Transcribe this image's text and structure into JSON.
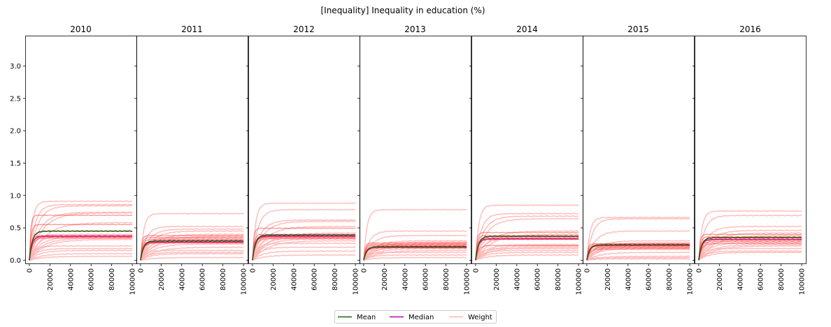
{
  "chart_data": {
    "type": "line",
    "title": "[Inequality] Inequality in education (%)",
    "x_ticks": [
      0,
      20000,
      40000,
      60000,
      80000,
      100000
    ],
    "x_range": [
      -4000,
      104000
    ],
    "ylim": [
      -0.05,
      3.47
    ],
    "y_ticks": [
      0.0,
      0.5,
      1.0,
      1.5,
      2.0,
      2.5,
      3.0
    ],
    "y_tick_labels": [
      "0.0",
      "0.5",
      "1.0",
      "1.5",
      "2.0",
      "2.5",
      "3.0"
    ],
    "legend": {
      "placement": "bottom-center",
      "entries": [
        {
          "label": "Mean",
          "color": "#2e7d1f"
        },
        {
          "label": "Median",
          "color": "#c020c0"
        },
        {
          "label": "Weight",
          "color": "#ffc0c0"
        }
      ]
    },
    "colors": {
      "weight": "#ffb3b3",
      "weight_strong": "#ff3030",
      "mean": "#2e7d1f",
      "median": "#c020c0",
      "mean_dark": "#550000"
    },
    "panels": [
      {
        "title": "2010",
        "mean": 0.45,
        "median": 0.37,
        "weights": [
          0.91,
          0.86,
          0.84,
          0.74,
          0.73,
          0.58,
          0.4,
          0.38,
          0.36,
          0.34,
          0.32,
          0.22,
          0.18,
          0.15,
          0.1,
          0.06
        ]
      },
      {
        "title": "2011",
        "mean": 0.3,
        "median": 0.28,
        "weights": [
          0.72,
          0.52,
          0.48,
          0.45,
          0.4,
          0.37,
          0.34,
          0.31,
          0.28,
          0.25,
          0.2,
          0.15,
          0.12,
          0.1,
          0.04
        ]
      },
      {
        "title": "2012",
        "mean": 0.39,
        "median": 0.37,
        "weights": [
          0.88,
          0.78,
          0.62,
          0.6,
          0.52,
          0.42,
          0.39,
          0.37,
          0.35,
          0.33,
          0.3,
          0.26,
          0.2,
          0.14,
          0.08
        ]
      },
      {
        "title": "2013",
        "mean": 0.21,
        "median": 0.2,
        "weights": [
          0.78,
          0.45,
          0.38,
          0.3,
          0.28,
          0.26,
          0.24,
          0.22,
          0.2,
          0.18,
          0.15,
          0.12,
          0.08,
          0.04
        ]
      },
      {
        "title": "2014",
        "mean": 0.37,
        "median": 0.33,
        "weights": [
          0.85,
          0.72,
          0.68,
          0.64,
          0.45,
          0.4,
          0.36,
          0.34,
          0.24,
          0.22,
          0.2,
          0.18,
          0.15,
          0.12,
          0.08
        ]
      },
      {
        "title": "2015",
        "mean": 0.24,
        "median": 0.23,
        "weights": [
          0.66,
          0.64,
          0.45,
          0.3,
          0.27,
          0.25,
          0.22,
          0.2,
          0.18,
          0.12,
          0.06,
          0.04,
          0.02
        ]
      },
      {
        "title": "2016",
        "mean": 0.35,
        "median": 0.32,
        "weights": [
          0.76,
          0.69,
          0.52,
          0.46,
          0.42,
          0.38,
          0.34,
          0.3,
          0.27,
          0.24,
          0.22,
          0.18,
          0.14,
          0.12
        ]
      }
    ]
  }
}
